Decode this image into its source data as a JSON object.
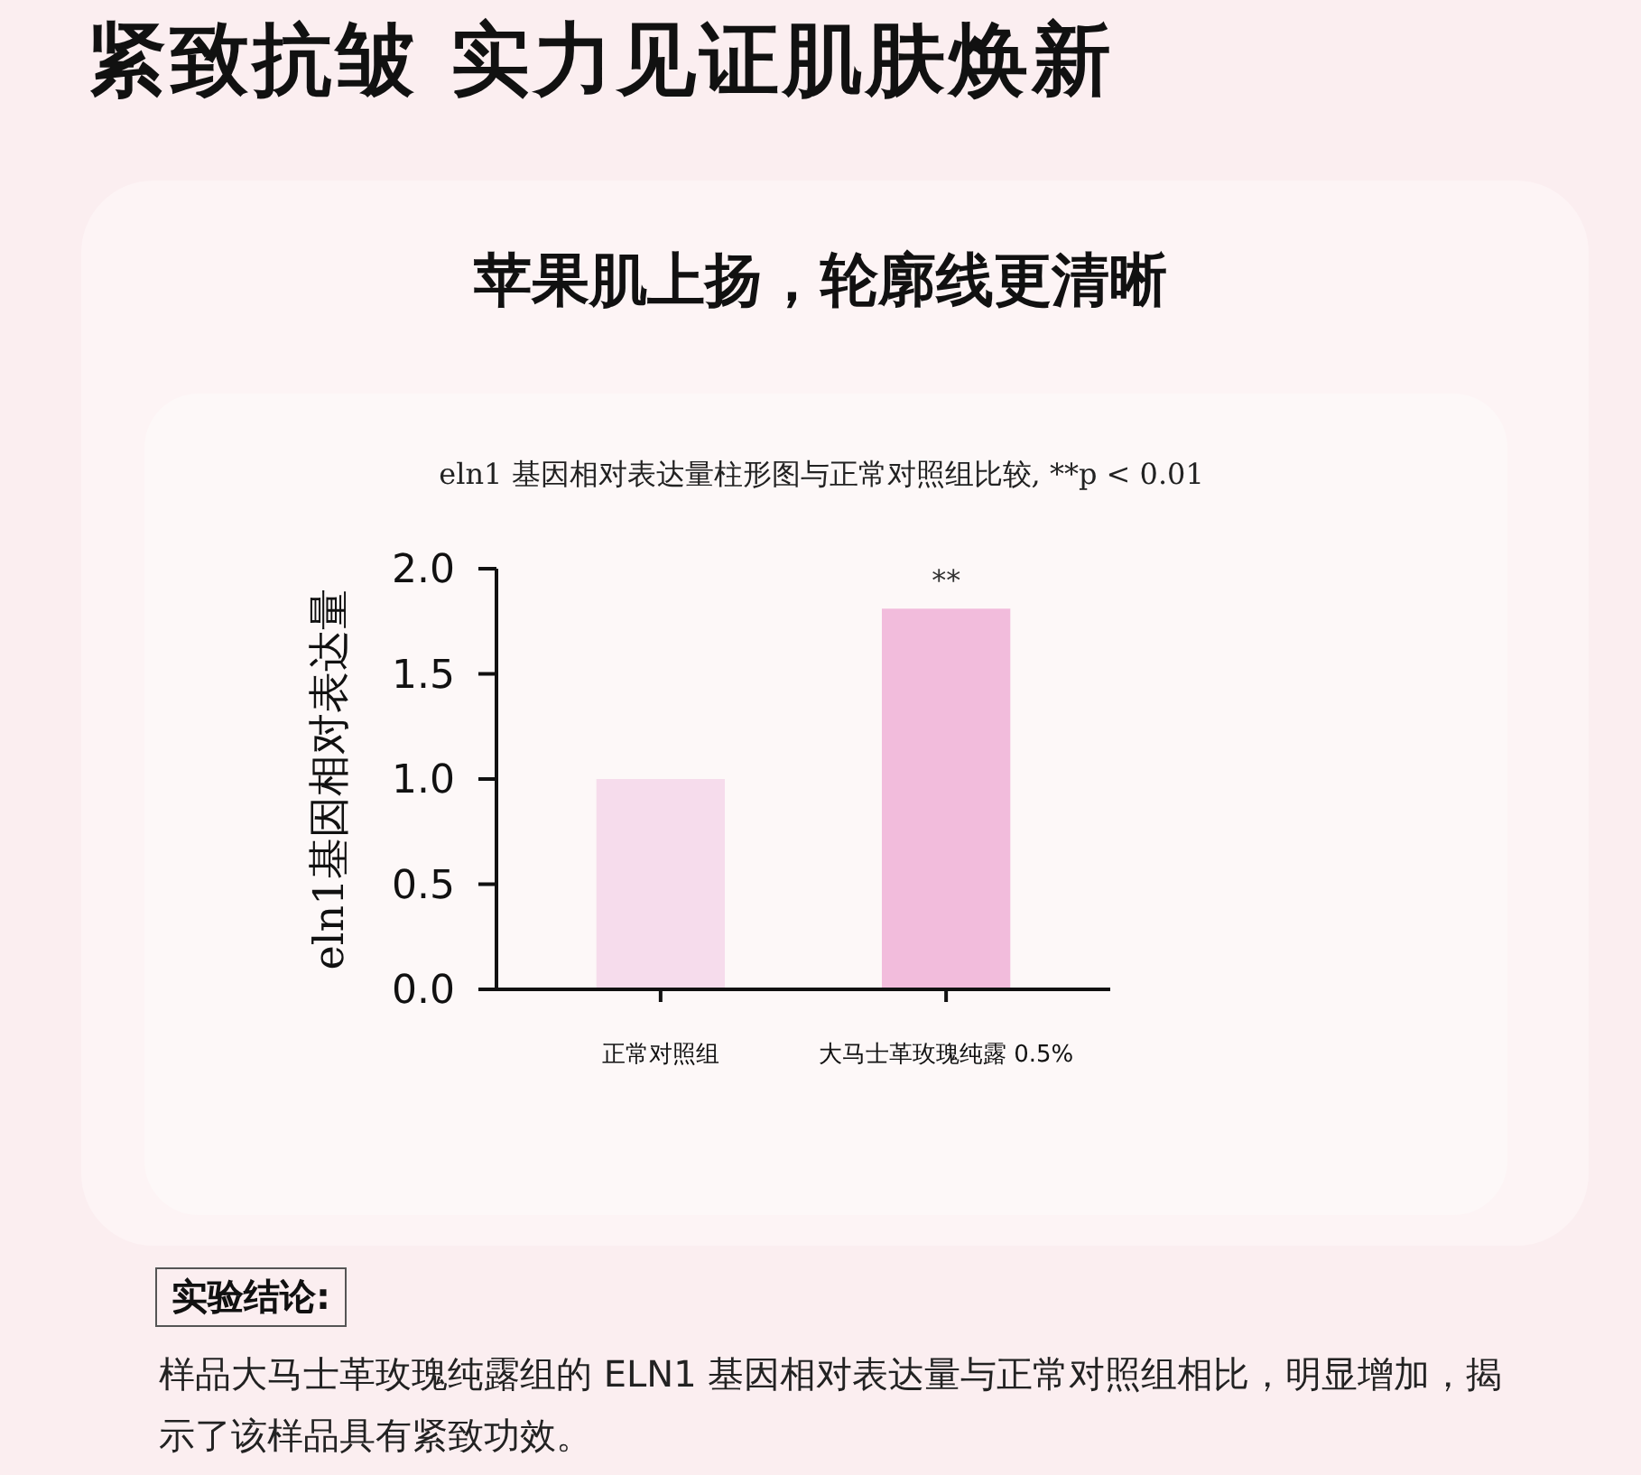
{
  "chart_data": {
    "type": "bar",
    "title": "紧致抗皱 实力见证肌肤焕新",
    "subtitle": "苹果肌上扬，轮廓线更清晰",
    "ylabel": "eln1基因相对表达量",
    "categories": [
      "正常对照组",
      "大马士革玫瑰纯露 0.5%"
    ],
    "values": [
      1.0,
      1.81
    ],
    "colors": [
      "#f6dcec",
      "#f2bcdc"
    ],
    "ylim": [
      0,
      2
    ],
    "yticks": [
      {
        "value": 0,
        "label": "0.0"
      },
      {
        "value": 0.5,
        "label": "0.5"
      },
      {
        "value": 1,
        "label": "1.0"
      },
      {
        "value": 1.5,
        "label": "1.5"
      },
      {
        "value": 2,
        "label": "2.0"
      }
    ],
    "annotations": [
      "eln1 基因相对表达量柱形图与正常对照组比较, **p < 0.01",
      "实验结论:",
      "样品大马士革玫瑰纯露组的 ELN1 基因相对表达量与正常对照组相比，明显增加，揭示了该样品具有紧致功效。",
      {
        "text": "**",
        "x": "大马士革玫瑰纯露 0.5%",
        "y": 1.81
      }
    ]
  }
}
